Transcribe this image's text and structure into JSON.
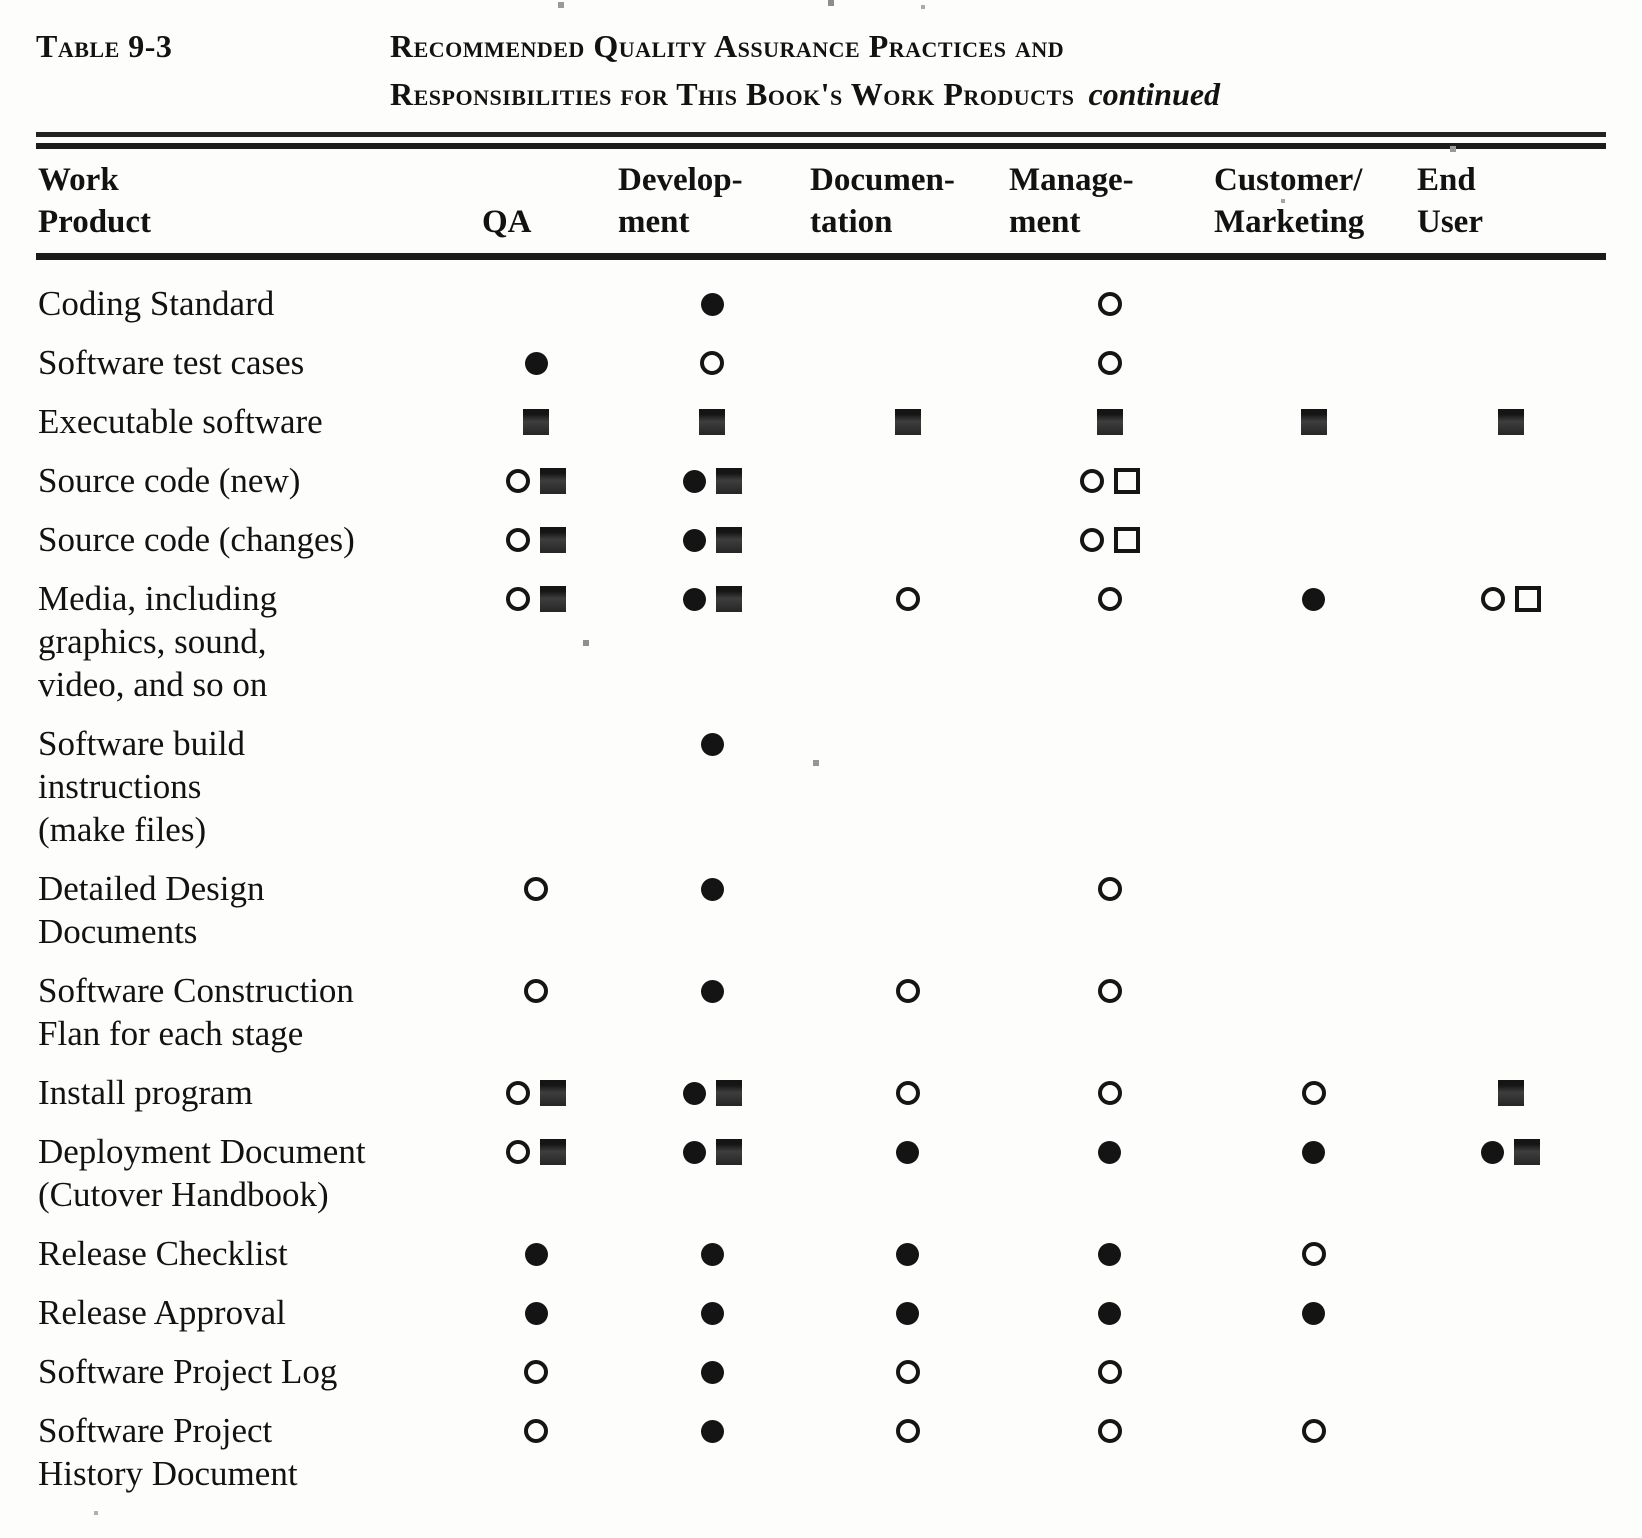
{
  "header": {
    "table_label": "Table 9-3",
    "title_line1": "Recommended Quality Assurance Practices and",
    "title_line2": "Responsibilities for This Book's Work Products",
    "continued_note": "continued"
  },
  "table": {
    "columns": [
      {
        "key": "work-product",
        "lines": [
          "Work",
          "Product"
        ]
      },
      {
        "key": "qa",
        "lines": [
          "QA"
        ]
      },
      {
        "key": "development",
        "lines": [
          "Develop-",
          "ment"
        ]
      },
      {
        "key": "documentation",
        "lines": [
          "Documen-",
          "tation"
        ]
      },
      {
        "key": "management",
        "lines": [
          "Manage-",
          "ment"
        ]
      },
      {
        "key": "customer-marketing",
        "lines": [
          "Customer/",
          "Marketing"
        ]
      },
      {
        "key": "end-user",
        "lines": [
          "End",
          "User"
        ]
      }
    ],
    "symbols": {
      "fc": "filled-circle",
      "oc": "open-circle",
      "fs": "filled-square",
      "os": "open-square"
    },
    "rows": [
      {
        "product": [
          "Coding Standard"
        ],
        "cells": [
          [],
          [
            "fc"
          ],
          [],
          [
            "oc"
          ],
          [],
          []
        ]
      },
      {
        "product": [
          "Software test cases"
        ],
        "cells": [
          [
            "fc"
          ],
          [
            "oc"
          ],
          [],
          [
            "oc"
          ],
          [],
          []
        ]
      },
      {
        "product": [
          "Executable software"
        ],
        "cells": [
          [
            "fs"
          ],
          [
            "fs"
          ],
          [
            "fs"
          ],
          [
            "fs"
          ],
          [
            "fs"
          ],
          [
            "fs"
          ]
        ]
      },
      {
        "product": [
          "Source code (new)"
        ],
        "cells": [
          [
            "oc",
            "fs"
          ],
          [
            "fc",
            "fs"
          ],
          [],
          [
            "oc",
            "os"
          ],
          [],
          []
        ]
      },
      {
        "product": [
          "Source code (changes)"
        ],
        "cells": [
          [
            "oc",
            "fs"
          ],
          [
            "fc",
            "fs"
          ],
          [],
          [
            "oc",
            "os"
          ],
          [],
          []
        ]
      },
      {
        "product": [
          "Media, including",
          "graphics, sound,",
          "video, and so on"
        ],
        "cells": [
          [
            "oc",
            "fs"
          ],
          [
            "fc",
            "fs"
          ],
          [
            "oc"
          ],
          [
            "oc"
          ],
          [
            "fc"
          ],
          [
            "oc",
            "os"
          ]
        ]
      },
      {
        "product": [
          "Software build",
          "instructions",
          "(make files)"
        ],
        "cells": [
          [],
          [
            "fc"
          ],
          [],
          [],
          [],
          []
        ]
      },
      {
        "product": [
          "Detailed Design",
          "Documents"
        ],
        "cells": [
          [
            "oc"
          ],
          [
            "fc"
          ],
          [],
          [
            "oc"
          ],
          [],
          []
        ]
      },
      {
        "product": [
          "Software Construction",
          "Flan for each stage"
        ],
        "cells": [
          [
            "oc"
          ],
          [
            "fc"
          ],
          [
            "oc"
          ],
          [
            "oc"
          ],
          [],
          []
        ]
      },
      {
        "product": [
          "Install program"
        ],
        "cells": [
          [
            "oc",
            "fs"
          ],
          [
            "fc",
            "fs"
          ],
          [
            "oc"
          ],
          [
            "oc"
          ],
          [
            "oc"
          ],
          [
            "fs"
          ]
        ]
      },
      {
        "product": [
          "Deployment Document",
          "(Cutover Handbook)"
        ],
        "cells": [
          [
            "oc",
            "fs"
          ],
          [
            "fc",
            "fs"
          ],
          [
            "fc"
          ],
          [
            "fc"
          ],
          [
            "fc"
          ],
          [
            "fc",
            "fs"
          ]
        ]
      },
      {
        "product": [
          "Release Checklist"
        ],
        "cells": [
          [
            "fc"
          ],
          [
            "fc"
          ],
          [
            "fc"
          ],
          [
            "fc"
          ],
          [
            "oc"
          ],
          []
        ]
      },
      {
        "product": [
          "Release Approval"
        ],
        "cells": [
          [
            "fc"
          ],
          [
            "fc"
          ],
          [
            "fc"
          ],
          [
            "fc"
          ],
          [
            "fc"
          ],
          []
        ]
      },
      {
        "product": [
          "Software Project Log"
        ],
        "cells": [
          [
            "oc"
          ],
          [
            "fc"
          ],
          [
            "oc"
          ],
          [
            "oc"
          ],
          [],
          []
        ]
      },
      {
        "product": [
          "Software Project",
          "History Document"
        ],
        "cells": [
          [
            "oc"
          ],
          [
            "fc"
          ],
          [
            "oc"
          ],
          [
            "oc"
          ],
          [
            "oc"
          ],
          []
        ]
      }
    ]
  }
}
